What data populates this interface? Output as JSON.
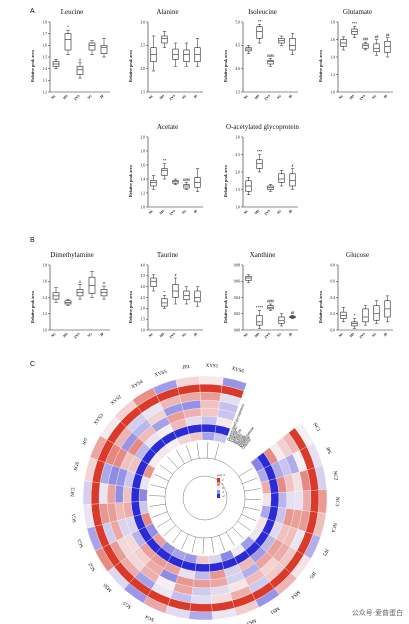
{
  "panels": {
    "A": "A",
    "B": "B",
    "C": "C"
  },
  "group_labels": [
    "NC",
    "MS",
    "XYS",
    "SG",
    "JP"
  ],
  "ylabel": "Relative peak area",
  "chart_data": [
    {
      "type": "box",
      "title": "Leucine",
      "ylim": [
        1.2,
        1.8
      ],
      "ticks": [
        "1.2",
        "1.3",
        "1.4",
        "1.5",
        "1.6",
        "1.7",
        "1.8"
      ],
      "boxes": [
        [
          1.4,
          1.42,
          1.44,
          1.46,
          1.48
        ],
        [
          1.52,
          1.56,
          1.65,
          1.7,
          1.73
        ],
        [
          1.32,
          1.35,
          1.39,
          1.42,
          1.45
        ],
        [
          1.52,
          1.56,
          1.6,
          1.62,
          1.64
        ],
        [
          1.5,
          1.53,
          1.58,
          1.6,
          1.66
        ]
      ],
      "marks": [
        "",
        "*",
        "#",
        "",
        ""
      ]
    },
    {
      "type": "box",
      "title": "Alanine",
      "ylim": [
        1.5,
        3.0
      ],
      "ticks": [
        "1.5",
        "2.0",
        "2.5",
        "3.0"
      ],
      "boxes": [
        [
          1.95,
          2.15,
          2.3,
          2.45,
          2.7
        ],
        [
          2.45,
          2.55,
          2.65,
          2.7,
          2.8
        ],
        [
          2.05,
          2.2,
          2.3,
          2.42,
          2.55
        ],
        [
          2.05,
          2.15,
          2.3,
          2.4,
          2.55
        ],
        [
          2.05,
          2.15,
          2.3,
          2.45,
          2.65
        ]
      ],
      "marks": [
        "",
        "",
        "",
        "",
        ""
      ]
    },
    {
      "type": "box",
      "title": "Isoleucine",
      "ylim": [
        3.5,
        5.0
      ],
      "ticks": [
        "3.5",
        "4.0",
        "4.5",
        "5.0"
      ],
      "boxes": [
        [
          4.32,
          4.38,
          4.42,
          4.45,
          4.5
        ],
        [
          4.55,
          4.65,
          4.8,
          4.9,
          4.95
        ],
        [
          4.05,
          4.1,
          4.15,
          4.18,
          4.22
        ],
        [
          4.5,
          4.55,
          4.6,
          4.65,
          4.7
        ],
        [
          4.3,
          4.4,
          4.5,
          4.65,
          4.75
        ]
      ],
      "marks": [
        "",
        "**",
        "####",
        "",
        ""
      ]
    },
    {
      "type": "box",
      "title": "Glutamate",
      "ylim": [
        1.0,
        1.8
      ],
      "ticks": [
        "1.0",
        "1.2",
        "1.4",
        "1.6",
        "1.8"
      ],
      "boxes": [
        [
          1.48,
          1.52,
          1.56,
          1.6,
          1.63
        ],
        [
          1.62,
          1.66,
          1.69,
          1.72,
          1.75
        ],
        [
          1.48,
          1.5,
          1.53,
          1.55,
          1.57
        ],
        [
          1.42,
          1.46,
          1.5,
          1.55,
          1.6
        ],
        [
          1.4,
          1.45,
          1.52,
          1.58,
          1.62
        ]
      ],
      "marks": [
        "",
        "***",
        "###",
        "##",
        "##"
      ]
    },
    {
      "type": "box",
      "title": "Acetate",
      "ylim": [
        1.0,
        2.0
      ],
      "ticks": [
        "1.0",
        "1.2",
        "1.4",
        "1.6",
        "1.8",
        "2.0"
      ],
      "boxes": [
        [
          1.25,
          1.3,
          1.35,
          1.38,
          1.45
        ],
        [
          1.4,
          1.45,
          1.52,
          1.55,
          1.62
        ],
        [
          1.32,
          1.34,
          1.36,
          1.38,
          1.4
        ],
        [
          1.25,
          1.27,
          1.3,
          1.32,
          1.35
        ],
        [
          1.22,
          1.28,
          1.35,
          1.42,
          1.55
        ]
      ],
      "marks": [
        "",
        "**",
        "",
        "####",
        ""
      ]
    },
    {
      "type": "box",
      "title": "O-acetylated glycoprotein",
      "ylim": [
        1.0,
        3.0
      ],
      "ticks": [
        "1.0",
        "1.5",
        "2.0",
        "2.5",
        "3.0"
      ],
      "boxes": [
        [
          1.35,
          1.45,
          1.6,
          1.75,
          1.85
        ],
        [
          2.0,
          2.1,
          2.25,
          2.35,
          2.5
        ],
        [
          1.45,
          1.5,
          1.55,
          1.6,
          1.65
        ],
        [
          1.6,
          1.7,
          1.8,
          1.95,
          2.05
        ],
        [
          1.5,
          1.6,
          1.75,
          1.95,
          2.1
        ]
      ],
      "marks": [
        "",
        "***",
        "",
        "",
        "#"
      ]
    },
    {
      "type": "box",
      "title": "Dimethylamine",
      "ylim": [
        1.0,
        1.8
      ],
      "ticks": [
        "1.0",
        "1.2",
        "1.4",
        "1.6",
        "1.8"
      ],
      "boxes": [
        [
          1.34,
          1.38,
          1.42,
          1.46,
          1.52
        ],
        [
          1.3,
          1.32,
          1.34,
          1.36,
          1.38
        ],
        [
          1.38,
          1.42,
          1.46,
          1.5,
          1.56
        ],
        [
          1.4,
          1.45,
          1.55,
          1.65,
          1.72
        ],
        [
          1.38,
          1.42,
          1.46,
          1.5,
          1.54
        ]
      ],
      "marks": [
        "",
        "",
        "#",
        "",
        "#"
      ]
    },
    {
      "type": "box",
      "title": "Taurine",
      "ylim": [
        1.0,
        4.0
      ],
      "ticks": [
        "1.0",
        "1.5",
        "2.0",
        "2.5",
        "3.0",
        "3.5",
        "4.0"
      ],
      "boxes": [
        [
          2.8,
          3.0,
          3.25,
          3.4,
          3.55
        ],
        [
          2.0,
          2.1,
          2.25,
          2.45,
          2.6
        ],
        [
          2.2,
          2.5,
          2.8,
          3.1,
          3.4
        ],
        [
          2.2,
          2.4,
          2.6,
          2.8,
          3.0
        ],
        [
          2.1,
          2.3,
          2.5,
          2.8,
          3.0
        ]
      ],
      "marks": [
        "",
        "*",
        "#",
        "",
        ""
      ]
    },
    {
      "type": "box",
      "title": "Xanthine",
      "ylim": [
        0.0,
        0.08
      ],
      "ticks": [
        "0.00",
        "0.02",
        "0.04",
        "0.06",
        "0.08"
      ],
      "boxes": [
        [
          0.058,
          0.061,
          0.064,
          0.066,
          0.068
        ],
        [
          0.002,
          0.006,
          0.01,
          0.018,
          0.024
        ],
        [
          0.024,
          0.026,
          0.028,
          0.03,
          0.032
        ],
        [
          0.005,
          0.008,
          0.012,
          0.016,
          0.02
        ],
        [
          0.014,
          0.015,
          0.016,
          0.017,
          0.018
        ]
      ],
      "marks": [
        "",
        "****",
        "####",
        "",
        "##"
      ]
    },
    {
      "type": "box",
      "title": "Glucose",
      "ylim": [
        0.0,
        0.8
      ],
      "ticks": [
        "0.0",
        "0.2",
        "0.4",
        "0.6",
        "0.8"
      ],
      "boxes": [
        [
          0.1,
          0.14,
          0.18,
          0.22,
          0.28
        ],
        [
          0.02,
          0.05,
          0.08,
          0.1,
          0.14
        ],
        [
          0.06,
          0.1,
          0.16,
          0.26,
          0.3
        ],
        [
          0.08,
          0.12,
          0.2,
          0.3,
          0.36
        ],
        [
          0.1,
          0.16,
          0.26,
          0.36,
          0.42
        ]
      ],
      "marks": [
        "",
        "*",
        "",
        "",
        ""
      ]
    }
  ],
  "circular": {
    "samples": [
      "NC1",
      "JP6",
      "NC2",
      "NC3",
      "NC4",
      "JP3",
      "JP5",
      "MS4",
      "MS1",
      "MS3",
      "JP4",
      "MS2",
      "MS5",
      "SG4",
      "SG5",
      "MS6",
      "SG2",
      "SG3",
      "SG1",
      "NC2",
      "SG6",
      "JP7",
      "XYS3",
      "XYS2",
      "XYS4",
      "XYS5",
      "JP2",
      "XYS1",
      "XYS6"
    ],
    "metabolites": [
      "O-acetylated glycoprotein",
      "Glutamate",
      "Leucine",
      "Isoleucine",
      "Acetate",
      "Taurine",
      "Alanine",
      "Dimethylamine",
      "Xanthine",
      "Glucose"
    ],
    "legend_title": "row z",
    "legend_ticks": [
      "2",
      "1",
      "0",
      "-1",
      "-2"
    ],
    "colors": {
      "high": "#d7301f",
      "mid": "#f7f7f7",
      "low": "#2b2bd6"
    }
  },
  "watermark": "公众号·爱普蛋白"
}
